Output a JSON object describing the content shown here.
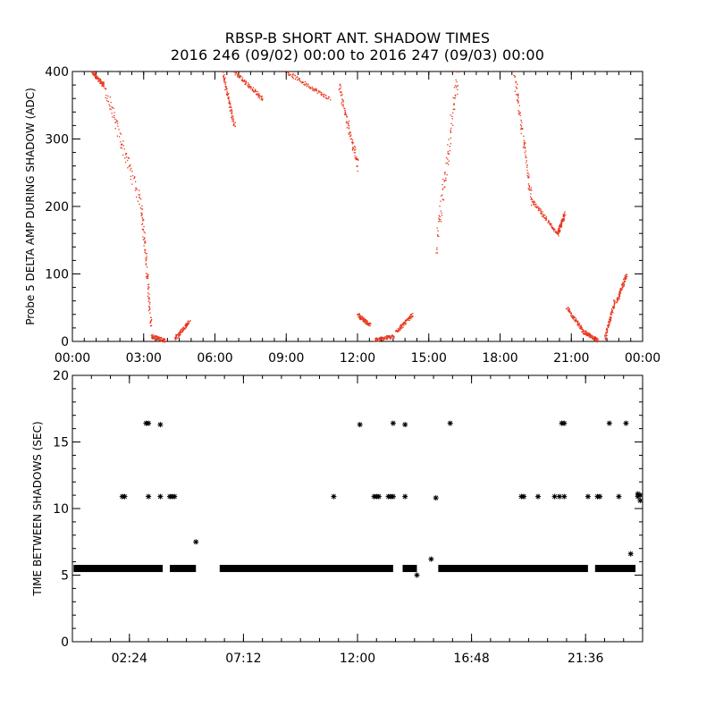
{
  "title_line1": "RBSP-B SHORT ANT. SHADOW TIMES",
  "title_line2": "2016 246 (09/02) 00:00 to 2016 247 (09/03) 00:00",
  "colors": {
    "top_points": "#e8361c",
    "bottom_points": "#000000",
    "axes": "#000000"
  },
  "chart_data": [
    {
      "type": "scatter",
      "ylabel": "Probe 5 DELTA AMP DURING SHADOW (ADC)",
      "xlabel": "",
      "x_unit": "hours since 2016-09-02 00:00",
      "xlim": [
        0,
        24
      ],
      "ylim": [
        0,
        400
      ],
      "x_ticks": [
        0,
        3,
        6,
        9,
        12,
        15,
        18,
        21,
        24
      ],
      "x_tick_labels": [
        "00:00",
        "03:00",
        "06:00",
        "09:00",
        "12:00",
        "15:00",
        "18:00",
        "21:00",
        "00:00"
      ],
      "y_ticks": [
        0,
        100,
        200,
        300,
        400
      ],
      "y_tick_labels": [
        "0",
        "100",
        "200",
        "300",
        "400"
      ],
      "marker": "dot",
      "series": [
        {
          "segments": [
            {
              "x": [
                0.8,
                1.3
              ],
              "y": [
                400,
                380
              ]
            },
            {
              "x": [
                1.3,
                2.9
              ],
              "y": [
                380,
                200
              ]
            },
            {
              "x": [
                2.9,
                3.3
              ],
              "y": [
                200,
                20
              ]
            },
            {
              "x": [
                3.3,
                3.9
              ],
              "y": [
                8,
                2
              ]
            },
            {
              "x": [
                4.3,
                4.9
              ],
              "y": [
                5,
                30
              ]
            },
            {
              "x": [
                6.3,
                6.8
              ],
              "y": [
                400,
                320
              ]
            },
            {
              "x": [
                6.8,
                8.0
              ],
              "y": [
                400,
                360
              ]
            },
            {
              "x": [
                9.0,
                10.8
              ],
              "y": [
                400,
                360
              ]
            },
            {
              "x": [
                11.2,
                12.0
              ],
              "y": [
                380,
                260
              ]
            },
            {
              "x": [
                12.0,
                12.5
              ],
              "y": [
                40,
                25
              ]
            },
            {
              "x": [
                12.7,
                13.5
              ],
              "y": [
                3,
                8
              ]
            },
            {
              "x": [
                13.6,
                14.3
              ],
              "y": [
                15,
                40
              ]
            },
            {
              "x": [
                15.3,
                16.2
              ],
              "y": [
                140,
                400
              ]
            },
            {
              "x": [
                18.6,
                19.3
              ],
              "y": [
                390,
                210
              ]
            },
            {
              "x": [
                19.3,
                20.4
              ],
              "y": [
                210,
                160
              ]
            },
            {
              "x": [
                20.4,
                20.7
              ],
              "y": [
                160,
                190
              ]
            },
            {
              "x": [
                20.8,
                21.5
              ],
              "y": [
                50,
                15
              ]
            },
            {
              "x": [
                21.5,
                22.1
              ],
              "y": [
                15,
                2
              ]
            },
            {
              "x": [
                22.4,
                22.8
              ],
              "y": [
                5,
                60
              ]
            },
            {
              "x": [
                22.9,
                23.3
              ],
              "y": [
                60,
                100
              ]
            }
          ]
        }
      ]
    },
    {
      "type": "scatter",
      "ylabel": "TIME BETWEEN SHADOWS (SEC)",
      "xlabel": "",
      "x_unit": "hours since 2016-09-02 00:00",
      "xlim": [
        0,
        24
      ],
      "ylim": [
        0,
        20
      ],
      "x_ticks": [
        2.4,
        7.2,
        12.0,
        16.8,
        21.6
      ],
      "x_tick_labels": [
        "02:24",
        "07:12",
        "12:00",
        "16:48",
        "21:36"
      ],
      "y_ticks": [
        0,
        5,
        10,
        15,
        20
      ],
      "y_tick_labels": [
        "0",
        "5",
        "10",
        "15",
        "20"
      ],
      "marker": "asterisk",
      "series": [
        {
          "baseline_value": 5.5,
          "baseline_ranges": [
            [
              0.05,
              3.8
            ],
            [
              4.1,
              5.2
            ],
            [
              6.2,
              13.5
            ],
            [
              13.9,
              14.5
            ],
            [
              15.4,
              21.7
            ],
            [
              22.0,
              23.7
            ]
          ],
          "points": [
            {
              "x": 2.1,
              "y": 10.9
            },
            {
              "x": 2.2,
              "y": 10.9
            },
            {
              "x": 3.1,
              "y": 16.4
            },
            {
              "x": 3.2,
              "y": 16.4
            },
            {
              "x": 3.2,
              "y": 10.9
            },
            {
              "x": 3.7,
              "y": 16.3
            },
            {
              "x": 3.7,
              "y": 10.9
            },
            {
              "x": 4.1,
              "y": 10.9
            },
            {
              "x": 4.2,
              "y": 10.9
            },
            {
              "x": 4.3,
              "y": 10.9
            },
            {
              "x": 5.2,
              "y": 7.5
            },
            {
              "x": 11.0,
              "y": 10.9
            },
            {
              "x": 12.1,
              "y": 16.3
            },
            {
              "x": 12.7,
              "y": 10.9
            },
            {
              "x": 12.8,
              "y": 10.9
            },
            {
              "x": 12.9,
              "y": 10.9
            },
            {
              "x": 13.3,
              "y": 10.9
            },
            {
              "x": 13.4,
              "y": 10.9
            },
            {
              "x": 13.5,
              "y": 10.9
            },
            {
              "x": 13.5,
              "y": 16.4
            },
            {
              "x": 14.0,
              "y": 16.3
            },
            {
              "x": 14.0,
              "y": 10.9
            },
            {
              "x": 14.5,
              "y": 5.0
            },
            {
              "x": 15.1,
              "y": 6.2
            },
            {
              "x": 15.3,
              "y": 10.8
            },
            {
              "x": 15.9,
              "y": 16.4
            },
            {
              "x": 18.9,
              "y": 10.9
            },
            {
              "x": 19.0,
              "y": 10.9
            },
            {
              "x": 19.6,
              "y": 10.9
            },
            {
              "x": 20.3,
              "y": 10.9
            },
            {
              "x": 20.5,
              "y": 10.9
            },
            {
              "x": 20.6,
              "y": 16.4
            },
            {
              "x": 20.7,
              "y": 16.4
            },
            {
              "x": 20.7,
              "y": 10.9
            },
            {
              "x": 21.7,
              "y": 10.9
            },
            {
              "x": 22.1,
              "y": 10.9
            },
            {
              "x": 22.2,
              "y": 10.9
            },
            {
              "x": 22.6,
              "y": 16.4
            },
            {
              "x": 23.0,
              "y": 10.9
            },
            {
              "x": 23.3,
              "y": 16.4
            },
            {
              "x": 23.5,
              "y": 6.6
            },
            {
              "x": 23.8,
              "y": 10.9
            },
            {
              "x": 23.8,
              "y": 11.1
            },
            {
              "x": 23.9,
              "y": 10.6
            },
            {
              "x": 23.9,
              "y": 11.0
            }
          ]
        }
      ]
    }
  ]
}
